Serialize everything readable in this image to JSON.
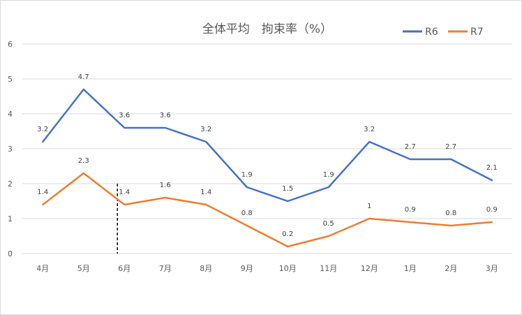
{
  "chart_data": {
    "type": "line",
    "title": "全体平均　拘束率（%）",
    "xlabel": "",
    "ylabel": "",
    "categories": [
      "4月",
      "5月",
      "6月",
      "7月",
      "8月",
      "9月",
      "10月",
      "11月",
      "12月",
      "1月",
      "2月",
      "3月"
    ],
    "ylim": [
      0,
      6
    ],
    "yticks": [
      "0",
      "1",
      "2",
      "3",
      "4",
      "5",
      "6"
    ],
    "grid": true,
    "legend": "top-right",
    "series": [
      {
        "name": "R6",
        "color": "#4472c4",
        "values": [
          3.2,
          4.7,
          3.6,
          3.6,
          3.2,
          1.9,
          1.5,
          1.9,
          3.2,
          2.7,
          2.7,
          2.1
        ],
        "labels": [
          "3.2",
          "4.7",
          "3.6",
          "3.6",
          "3.2",
          "1.9",
          "1.5",
          "1.9",
          "3.2",
          "2.7",
          "2.7",
          "2.1"
        ]
      },
      {
        "name": "R7",
        "color": "#ed7d31",
        "values": [
          1.4,
          2.3,
          1.4,
          1.6,
          1.4,
          0.8,
          0.2,
          0.5,
          1.0,
          0.9,
          0.8,
          0.9
        ],
        "labels": [
          "1.4",
          "2.3",
          "1.4",
          "1.6",
          "1.4",
          "0.8",
          "0.2",
          "0.5",
          "1",
          "0.9",
          "0.8",
          "0.9"
        ]
      }
    ],
    "marker_line": {
      "category": "6月",
      "style": "dashed",
      "color": "#000000"
    }
  }
}
